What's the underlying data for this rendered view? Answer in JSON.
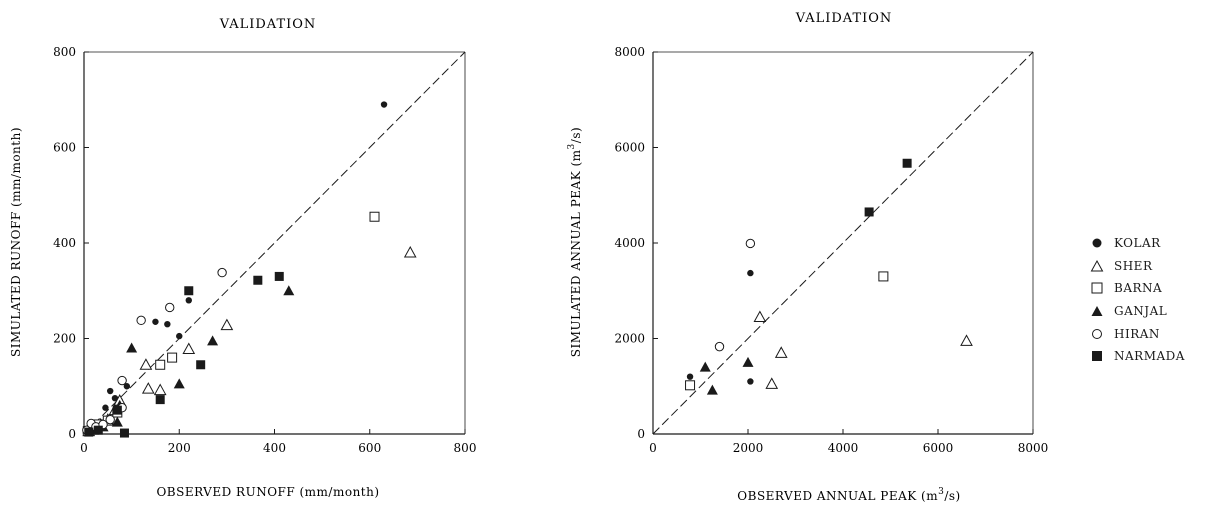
{
  "chart_data": [
    {
      "type": "scatter",
      "title": "VALIDATION",
      "xlabel": "OBSERVED RUNOFF (mm/month)",
      "ylabel": "SIMULATED RUNOFF (mm/month)",
      "xlim": [
        0,
        800
      ],
      "ylim": [
        0,
        800
      ],
      "xticks": [
        "0",
        "200",
        "400",
        "600",
        "800"
      ],
      "yticks": [
        "0",
        "200",
        "400",
        "600",
        "800"
      ],
      "reference_line": "1:1 dashed",
      "series": [
        {
          "name": "KOLAR",
          "marker": "filled-circle",
          "x": [
            4,
            10,
            15,
            22,
            28,
            35,
            45,
            55,
            65,
            75,
            90,
            150,
            175,
            200,
            220,
            630
          ],
          "y": [
            2,
            4,
            6,
            10,
            12,
            18,
            55,
            90,
            75,
            70,
            100,
            235,
            230,
            205,
            280,
            690
          ]
        },
        {
          "name": "SHER",
          "marker": "open-triangle",
          "x": [
            10,
            25,
            35,
            50,
            65,
            75,
            130,
            135,
            160,
            220,
            300,
            685
          ],
          "y": [
            6,
            10,
            20,
            30,
            50,
            70,
            145,
            95,
            92,
            178,
            228,
            380
          ]
        },
        {
          "name": "BARNA",
          "marker": "open-square",
          "x": [
            8,
            20,
            30,
            50,
            70,
            160,
            185,
            610
          ],
          "y": [
            6,
            12,
            20,
            28,
            45,
            145,
            160,
            455
          ]
        },
        {
          "name": "GANJAL",
          "marker": "filled-triangle",
          "x": [
            20,
            40,
            70,
            75,
            100,
            200,
            270,
            430
          ],
          "y": [
            8,
            15,
            25,
            60,
            180,
            105,
            195,
            300
          ]
        },
        {
          "name": "HIRAN",
          "marker": "open-circle",
          "x": [
            6,
            15,
            25,
            40,
            55,
            80,
            80,
            120,
            180,
            290
          ],
          "y": [
            8,
            22,
            15,
            20,
            30,
            55,
            112,
            238,
            265,
            338
          ]
        },
        {
          "name": "NARMADA",
          "marker": "filled-square",
          "x": [
            10,
            30,
            70,
            85,
            160,
            220,
            245,
            365,
            410
          ],
          "y": [
            4,
            8,
            50,
            2,
            72,
            300,
            145,
            322,
            330
          ]
        }
      ]
    },
    {
      "type": "scatter",
      "title": "VALIDATION",
      "xlabel_main": "OBSERVED ANNUAL PEAK (m",
      "xlabel_sup": "3",
      "xlabel_tail": "/s)",
      "ylabel_main": "SIMULATED ANNUAL PEAK (m",
      "ylabel_sup": "3",
      "ylabel_tail": "/s)",
      "xlim": [
        0,
        8000
      ],
      "ylim": [
        0,
        8000
      ],
      "xticks": [
        "0",
        "2000",
        "4000",
        "6000",
        "8000"
      ],
      "yticks": [
        "0",
        "2000",
        "4000",
        "6000",
        "8000"
      ],
      "reference_line": "1:1 dashed",
      "series": [
        {
          "name": "KOLAR",
          "marker": "filled-circle",
          "x": [
            780,
            2050,
            2050
          ],
          "y": [
            1200,
            3370,
            1100
          ]
        },
        {
          "name": "SHER",
          "marker": "open-triangle",
          "x": [
            2250,
            2500,
            2700,
            6600
          ],
          "y": [
            2450,
            1050,
            1700,
            1950
          ]
        },
        {
          "name": "BARNA",
          "marker": "open-square",
          "x": [
            780,
            4850
          ],
          "y": [
            1020,
            3300
          ]
        },
        {
          "name": "GANJAL",
          "marker": "filled-triangle",
          "x": [
            1100,
            1250,
            2000
          ],
          "y": [
            1400,
            920,
            1500
          ]
        },
        {
          "name": "HIRAN",
          "marker": "open-circle",
          "x": [
            1400,
            2050
          ],
          "y": [
            1830,
            3990
          ]
        },
        {
          "name": "NARMADA",
          "marker": "filled-square",
          "x": [
            4550,
            5350
          ],
          "y": [
            4650,
            5670
          ]
        }
      ]
    }
  ],
  "legend": {
    "items": [
      {
        "label": "KOLAR",
        "marker": "filled-circle"
      },
      {
        "label": "SHER",
        "marker": "open-triangle"
      },
      {
        "label": "BARNA",
        "marker": "open-square"
      },
      {
        "label": "GANJAL",
        "marker": "filled-triangle"
      },
      {
        "label": "HIRAN",
        "marker": "open-circle"
      },
      {
        "label": "NARMADA",
        "marker": "filled-square"
      }
    ]
  },
  "colors": {
    "ink": "#1a1a1a",
    "background": "#ffffff"
  }
}
